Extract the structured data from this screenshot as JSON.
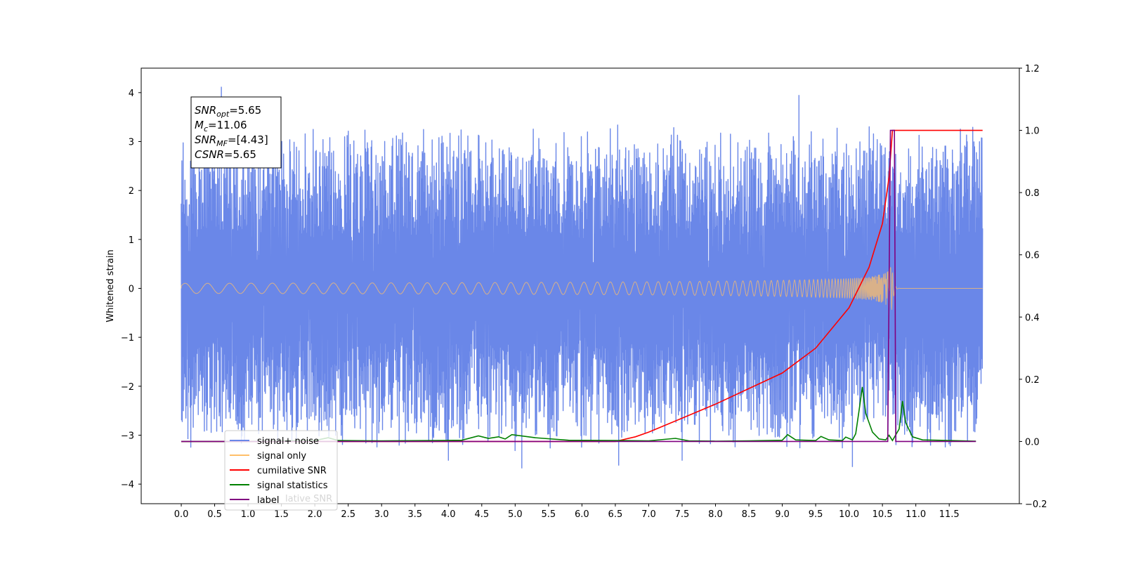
{
  "chart_data": {
    "type": "line",
    "ylabel": "Whitened strain",
    "xlim": [
      -0.6,
      12.55
    ],
    "ylim_left": [
      -4.4,
      4.5
    ],
    "ylim_right": [
      -0.2,
      1.2
    ],
    "x_ticks": [
      "0.0",
      "0.5",
      "1.0",
      "1.5",
      "2.0",
      "2.5",
      "3.0",
      "3.5",
      "4.0",
      "4.5",
      "5.0",
      "5.5",
      "6.0",
      "6.5",
      "7.0",
      "7.5",
      "8.0",
      "8.5",
      "9.0",
      "9.5",
      "10.0",
      "10.5",
      "11.0",
      "11.5"
    ],
    "y_ticks_left": [
      "4",
      "3",
      "2",
      "1",
      "0",
      "−1",
      "−2",
      "−3",
      "−4"
    ],
    "y_ticks_right": [
      "1.2",
      "1.0",
      "0.8",
      "0.6",
      "0.4",
      "0.2",
      "0.0",
      "−0.2"
    ],
    "info_box": [
      {
        "main": "SNR",
        "sub": "opt",
        "rest": "=5.65"
      },
      {
        "main": "M",
        "sub": "c",
        "rest": "=11.06"
      },
      {
        "main": "SNR",
        "sub": "MF",
        "rest": "=[4.43]"
      },
      {
        "main": "CSNR",
        "sub": "",
        "rest": "=5.65"
      }
    ],
    "legend": [
      {
        "label": "signal+ noise",
        "color": "#6a87e8"
      },
      {
        "label": "signal only",
        "color": "#ffbf69"
      },
      {
        "label": "cumilative SNR",
        "color": "#ff0000"
      },
      {
        "label": "signal statistics",
        "color": "#008000"
      },
      {
        "label": "label",
        "color": "#800080"
      }
    ],
    "legend_ghost_text": "lative SNR",
    "series": [
      {
        "name": "signal+ noise",
        "axis": "left",
        "color": "#6a87e8",
        "x_range": [
          0.0,
          12.0
        ],
        "envelope": [
          2.7,
          3.4
        ],
        "spikes": [
          [
            0.6,
            4.12
          ],
          [
            9.25,
            3.95
          ],
          [
            10.05,
            -3.65
          ],
          [
            5.1,
            -3.68
          ],
          [
            6.55,
            -3.62
          ],
          [
            4.0,
            -3.52
          ],
          [
            0.1,
            -3.08
          ],
          [
            7.5,
            -3.52
          ]
        ]
      },
      {
        "name": "signal only",
        "axis": "left",
        "color": "#ffbf69",
        "x_range": [
          0.0,
          12.0
        ],
        "merger_x": 10.65,
        "peak_amplitude": 0.45
      },
      {
        "name": "cumilative SNR",
        "axis": "right",
        "color": "#ff0000",
        "points": [
          [
            0.0,
            0.0
          ],
          [
            6.5,
            0.0
          ],
          [
            6.8,
            0.015
          ],
          [
            7.0,
            0.03
          ],
          [
            7.5,
            0.075
          ],
          [
            8.0,
            0.12
          ],
          [
            8.5,
            0.17
          ],
          [
            9.0,
            0.22
          ],
          [
            9.5,
            0.3
          ],
          [
            10.0,
            0.43
          ],
          [
            10.3,
            0.56
          ],
          [
            10.5,
            0.7
          ],
          [
            10.6,
            0.85
          ],
          [
            10.65,
            1.0
          ],
          [
            12.0,
            1.0
          ]
        ]
      },
      {
        "name": "signal statistics",
        "axis": "right",
        "color": "#008000",
        "points": [
          [
            0.0,
            0.0
          ],
          [
            1.0,
            0.0
          ],
          [
            1.5,
            0.002
          ],
          [
            2.0,
            0.003
          ],
          [
            2.2,
            0.012
          ],
          [
            2.35,
            0.003
          ],
          [
            3.0,
            0.002
          ],
          [
            3.8,
            0.003
          ],
          [
            4.2,
            0.004
          ],
          [
            4.45,
            0.018
          ],
          [
            4.6,
            0.01
          ],
          [
            4.75,
            0.015
          ],
          [
            4.85,
            0.008
          ],
          [
            4.95,
            0.022
          ],
          [
            5.3,
            0.012
          ],
          [
            5.8,
            0.004
          ],
          [
            6.5,
            0.003
          ],
          [
            7.0,
            0.002
          ],
          [
            7.4,
            0.01
          ],
          [
            7.6,
            0.002
          ],
          [
            8.0,
            0.001
          ],
          [
            8.5,
            0.002
          ],
          [
            9.0,
            0.004
          ],
          [
            9.08,
            0.022
          ],
          [
            9.2,
            0.005
          ],
          [
            9.5,
            0.003
          ],
          [
            9.58,
            0.016
          ],
          [
            9.7,
            0.005
          ],
          [
            9.9,
            0.003
          ],
          [
            9.95,
            0.014
          ],
          [
            10.05,
            0.005
          ],
          [
            10.1,
            0.025
          ],
          [
            10.15,
            0.1
          ],
          [
            10.2,
            0.175
          ],
          [
            10.25,
            0.09
          ],
          [
            10.35,
            0.03
          ],
          [
            10.45,
            0.008
          ],
          [
            10.55,
            0.005
          ],
          [
            10.6,
            0.02
          ],
          [
            10.65,
            0.003
          ],
          [
            10.75,
            0.04
          ],
          [
            10.8,
            0.13
          ],
          [
            10.85,
            0.06
          ],
          [
            10.95,
            0.015
          ],
          [
            11.1,
            0.005
          ],
          [
            11.5,
            0.003
          ],
          [
            11.9,
            0.001
          ]
        ]
      },
      {
        "name": "label",
        "axis": "right",
        "color": "#800080",
        "points": [
          [
            0.0,
            0.0
          ],
          [
            10.58,
            0.0
          ],
          [
            10.62,
            1.0
          ],
          [
            10.68,
            1.0
          ],
          [
            10.7,
            0.0
          ],
          [
            11.9,
            0.0
          ]
        ]
      }
    ]
  }
}
